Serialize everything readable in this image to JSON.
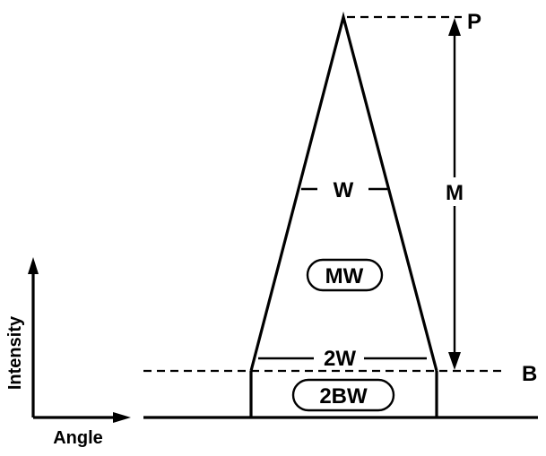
{
  "labels": {
    "peak": "P",
    "background": "B",
    "magnitude": "M",
    "width": "W",
    "double_width": "2W",
    "peak_area": "MW",
    "background_area": "2BW"
  },
  "axes": {
    "y_label": "Intensity",
    "x_label": "Angle"
  }
}
